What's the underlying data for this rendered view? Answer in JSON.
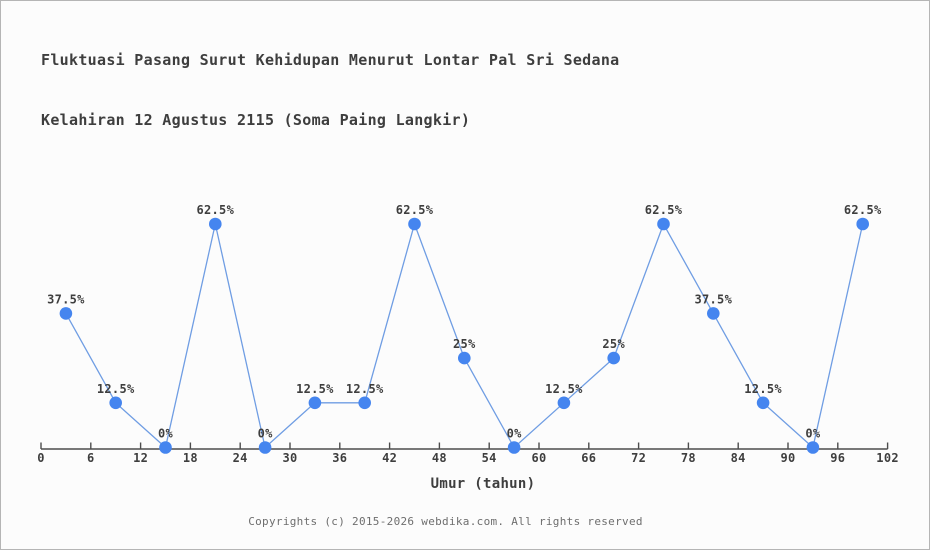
{
  "header": {
    "title_line1": "Fluktuasi Pasang Surut Kehidupan Menurut Lontar Pal Sri Sedana",
    "title_line2": "Kelahiran 12 Agustus 2115 (Soma Paing Langkir)"
  },
  "chart_data": {
    "type": "line",
    "title": "Fluktuasi Pasang Surut Kehidupan Menurut Lontar Pal Sri Sedana Kelahiran 12 Agustus 2115 (Soma Paing Langkir)",
    "x": [
      3,
      9,
      15,
      21,
      27,
      33,
      39,
      45,
      51,
      57,
      63,
      69,
      75,
      81,
      87,
      93,
      99
    ],
    "values": [
      37.5,
      12.5,
      0,
      62.5,
      0,
      12.5,
      12.5,
      62.5,
      25,
      0,
      12.5,
      25,
      62.5,
      37.5,
      12.5,
      0,
      62.5
    ],
    "point_labels": [
      "37.5%",
      "12.5%",
      "0%",
      "62.5%",
      "0%",
      "12.5%",
      "12.5%",
      "62.5%",
      "25%",
      "0%",
      "12.5%",
      "25%",
      "62.5%",
      "37.5%",
      "12.5%",
      "0%",
      "62.5%"
    ],
    "xlabel": "Umur (tahun)",
    "ylabel": "",
    "x_ticks": [
      0,
      6,
      12,
      18,
      24,
      30,
      36,
      42,
      48,
      54,
      60,
      66,
      72,
      78,
      84,
      90,
      96,
      102
    ],
    "xlim": [
      0,
      102
    ],
    "ylim": [
      0,
      70
    ],
    "grid": false,
    "legend_position": "none",
    "colors": {
      "line": "#6f9de3",
      "marker": "#4585ef",
      "axis": "#4d4d4d",
      "label": "#3e3e3e"
    }
  },
  "footer": {
    "copyright": "Copyrights (c) 2015-2026 webdika.com. All rights reserved"
  }
}
